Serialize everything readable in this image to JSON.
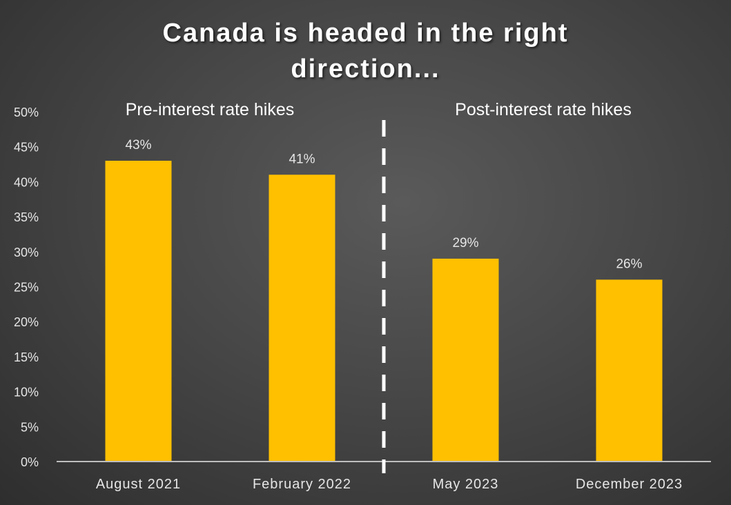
{
  "chart_data": {
    "type": "bar",
    "title_lines": [
      "Canada is headed in the right",
      "direction..."
    ],
    "categories": [
      "August 2021",
      "February 2022",
      "May 2023",
      "December 2023"
    ],
    "values": [
      43,
      41,
      29,
      26
    ],
    "data_labels": [
      "43%",
      "41%",
      "29%",
      "26%"
    ],
    "y_ticks": [
      "0%",
      "5%",
      "10%",
      "15%",
      "20%",
      "25%",
      "30%",
      "35%",
      "40%",
      "45%",
      "50%"
    ],
    "ylim": [
      0,
      50
    ],
    "xlabel": "",
    "ylabel": "",
    "grid": false,
    "legend": "none",
    "annotations": {
      "left_section": "Pre-interest rate hikes",
      "right_section": "Post-interest rate hikes",
      "divider": "dashed vertical line between February 2022 and May 2023"
    },
    "colors": {
      "bar": "#FFC000",
      "background": "#404040",
      "axis": "#bfbfbf",
      "text": "#e6e6e6",
      "divider": "#ffffff"
    }
  }
}
